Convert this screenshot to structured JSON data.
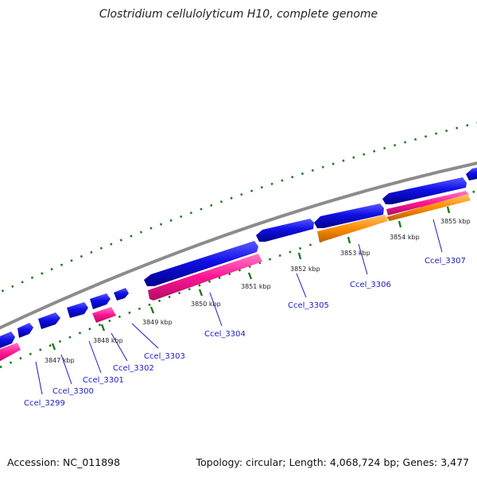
{
  "title": "Clostridium cellulolyticum H10, complete genome",
  "footer": {
    "accession": "Accession: NC_011898",
    "summary": "Topology: circular; Length: 4,068,724 bp; Genes: 3,477"
  },
  "colors": {
    "forward_gene": "#1010e6",
    "reverse_gene_pink": "#ff1493",
    "reverse_gene_orange": "#ff8c00",
    "backbone": "#8c8c8c",
    "ticks": "#1a7a1a",
    "gene_label": "#1a1ac8"
  },
  "kbp_labels": [
    "3847 kbp",
    "3848 kbp",
    "3849 kbp",
    "3850 kbp",
    "3851 kbp",
    "3852 kbp",
    "3853 kbp",
    "3854 kbp",
    "3855 kbp"
  ],
  "gene_labels": [
    "Ccel_3299",
    "Ccel_3300",
    "Ccel_3301",
    "Ccel_3302",
    "Ccel_3303",
    "Ccel_3304",
    "Ccel_3305",
    "Ccel_3306",
    "Ccel_3307"
  ]
}
